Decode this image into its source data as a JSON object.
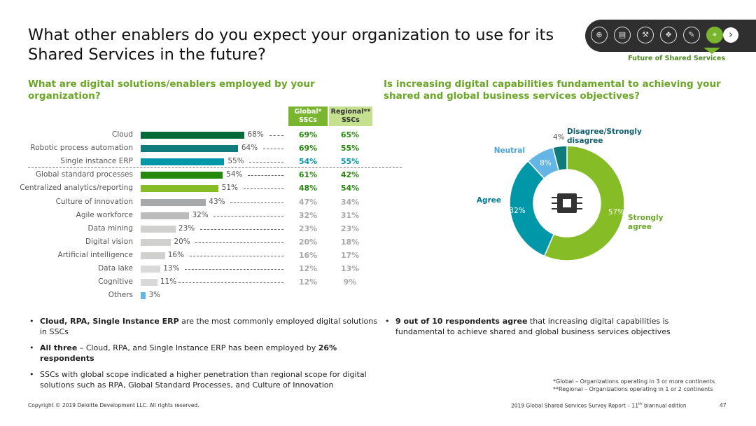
{
  "title": "What other enablers do you expect your organization to use for its Shared Services in the future?",
  "nav": {
    "section_label": "Future of Shared Services",
    "icons": [
      "globe-icon",
      "clipboard-icon",
      "gavel-icon",
      "footsteps-icon",
      "wrench-icon",
      "telescope-icon"
    ],
    "next_icon": "chevron-right-icon"
  },
  "left": {
    "subtitle": "What are digital solutions/enablers employed by your organization?",
    "header_global": "Global* SSCs",
    "header_regional": "Regional** SSCs"
  },
  "right": {
    "subtitle": "Is increasing digital capabilities fundamental to achieving your shared and global business services objectives?",
    "center_icon": "chip-icon"
  },
  "colors": {
    "green": "#7ab52f",
    "dark_green": "#046a38",
    "teal": "#0f7b7c",
    "cyan": "#0097a9",
    "light_blue": "#62b5e5",
    "gray": "#a7a8aa",
    "light_gray": "#d0d0ce"
  },
  "chart_data": [
    {
      "type": "bar",
      "orientation": "horizontal",
      "categories": [
        "Cloud",
        "Robotic process automation",
        "Single instance ERP",
        "Global standard processes",
        "Centralized analytics/reporting",
        "Culture of innovation",
        "Agile workforce",
        "Data mining",
        "Digital vision",
        "Artificial intelligence",
        "Data lake",
        "Cognitive",
        "Others"
      ],
      "values": [
        68,
        64,
        55,
        54,
        51,
        43,
        32,
        23,
        20,
        16,
        13,
        11,
        3
      ],
      "value_labels": [
        "68%",
        "64%",
        "55%",
        "54%",
        "51%",
        "43%",
        "32%",
        "23%",
        "20%",
        "16%",
        "13%",
        "11%",
        "3%"
      ],
      "bar_colors": [
        "#046a38",
        "#0f7b7c",
        "#0097a9",
        "#26890d",
        "#86bc25",
        "#a7a8aa",
        "#bbbcbc",
        "#d0d0ce",
        "#d0d0ce",
        "#d0d0ce",
        "#d9d9d9",
        "#d9d9d9",
        "#62b5e5"
      ],
      "global": [
        "69%",
        "69%",
        "54%",
        "61%",
        "48%",
        "47%",
        "32%",
        "23%",
        "20%",
        "16%",
        "12%",
        "12%",
        ""
      ],
      "regional": [
        "65%",
        "55%",
        "55%",
        "42%",
        "54%",
        "34%",
        "31%",
        "23%",
        "18%",
        "17%",
        "13%",
        "9%",
        ""
      ],
      "table_colors": [
        "#26890d",
        "#26890d",
        "#0097a9",
        "#26890d",
        "#26890d",
        "#a7a8aa",
        "#a7a8aa",
        "#a7a8aa",
        "#a7a8aa",
        "#a7a8aa",
        "#a7a8aa",
        "#a7a8aa",
        "#a7a8aa"
      ],
      "xlim": [
        0,
        100
      ]
    },
    {
      "type": "pie",
      "style": "donut",
      "categories": [
        "Strongly agree",
        "Agree",
        "Neutral",
        "Disagree/Strongly disagree"
      ],
      "values": [
        57,
        32,
        8,
        4
      ],
      "value_labels": [
        "57%",
        "32%",
        "8%",
        "4%"
      ],
      "display_labels": [
        "Strongly\nagree",
        "Agree",
        "Neutral",
        "Disagree/Strongly\ndisagree"
      ],
      "colors": [
        "#86bc25",
        "#0097a9",
        "#62b5e5",
        "#0f7b7c"
      ],
      "label_colors": [
        "#6aa628",
        "#007a8a",
        "#4aa3d8",
        "#0f5e6f"
      ]
    }
  ],
  "bullets_left": [
    {
      "bold": "Cloud, RPA, Single Instance ERP",
      "text": " are the most commonly employed digital solutions in SSCs"
    },
    {
      "bold": "All three",
      "text": " – Cloud, RPA, and Single Instance ERP has been employed by ",
      "bold2": "26% respondents"
    },
    {
      "bold": "",
      "text": "SSCs with global scope indicated a higher penetration than regional scope for digital solutions such as RPA, Global Standard Processes, and Culture of Innovation"
    }
  ],
  "bullets_right": [
    {
      "bold": "9 out of 10 respondents agree",
      "text": " that increasing digital capabilities is fundamental to achieve shared and global business services objectives"
    }
  ],
  "footnote": {
    "global": "*Global – Organizations operating in 3 or more continents",
    "regional": "**Regional – Organizations operating in 1 or 2 continents"
  },
  "footer": {
    "copyright": "Copyright © 2019 Deloitte Development LLC. All rights reserved.",
    "report_prefix": "2019 Global Shared Services Survey Report – 11",
    "report_sup": "th",
    "report_suffix": " biannual edition",
    "page": "47"
  }
}
